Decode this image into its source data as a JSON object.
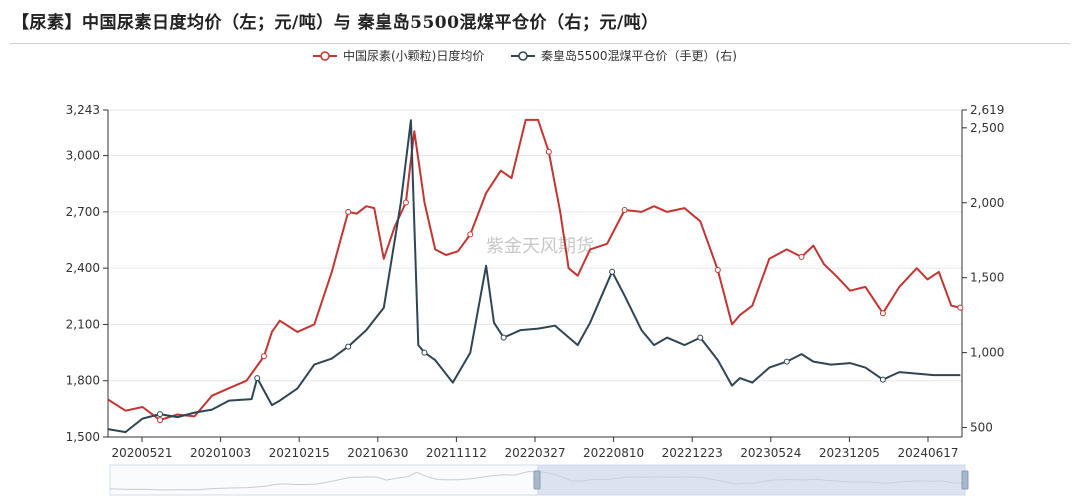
{
  "title": "【尿素】中国尿素日度均价（左；元/吨）与 秦皇岛5500混煤平仓价（右；元/吨）",
  "watermark": "紫金天风期货",
  "colors": {
    "series1": "#c23531",
    "series2": "#2f4554",
    "axis": "#333333",
    "grid": "#e6e6e6"
  },
  "chart_data": {
    "type": "line",
    "x_tick_labels": [
      "20200521",
      "20201003",
      "20210215",
      "20210630",
      "20211112",
      "20220327",
      "20220810",
      "20221223",
      "20230524",
      "20231205",
      "20240617"
    ],
    "y_left": {
      "ylim": [
        1500,
        3243
      ],
      "ticks": [
        "1,500",
        "1,800",
        "2,100",
        "2,400",
        "2,700",
        "3,000",
        "3,243"
      ]
    },
    "y_right": {
      "ylim": [
        437,
        2619
      ],
      "ticks": [
        "500",
        "1,000",
        "1,500",
        "2,000",
        "2,500",
        "2,619"
      ]
    },
    "series": [
      {
        "name": "中国尿素(小颗粒)日度均价",
        "axis": "left",
        "points": [
          [
            "2020-05-01",
            1700
          ],
          [
            "2020-06-01",
            1640
          ],
          [
            "2020-07-01",
            1660
          ],
          [
            "2020-08-01",
            1590
          ],
          [
            "2020-09-01",
            1620
          ],
          [
            "2020-10-01",
            1610
          ],
          [
            "2020-11-01",
            1720
          ],
          [
            "2020-12-01",
            1760
          ],
          [
            "2021-01-01",
            1800
          ],
          [
            "2021-02-01",
            1930
          ],
          [
            "2021-02-15",
            2060
          ],
          [
            "2021-03-01",
            2120
          ],
          [
            "2021-04-01",
            2060
          ],
          [
            "2021-05-01",
            2100
          ],
          [
            "2021-06-01",
            2380
          ],
          [
            "2021-06-30",
            2700
          ],
          [
            "2021-07-15",
            2690
          ],
          [
            "2021-08-01",
            2730
          ],
          [
            "2021-08-15",
            2720
          ],
          [
            "2021-09-01",
            2450
          ],
          [
            "2021-09-20",
            2620
          ],
          [
            "2021-10-10",
            2750
          ],
          [
            "2021-10-25",
            3130
          ],
          [
            "2021-11-12",
            2750
          ],
          [
            "2021-12-01",
            2500
          ],
          [
            "2021-12-20",
            2470
          ],
          [
            "2022-01-10",
            2490
          ],
          [
            "2022-02-01",
            2580
          ],
          [
            "2022-03-01",
            2800
          ],
          [
            "2022-03-27",
            2920
          ],
          [
            "2022-04-15",
            2880
          ],
          [
            "2022-05-10",
            3190
          ],
          [
            "2022-06-01",
            3190
          ],
          [
            "2022-06-20",
            3020
          ],
          [
            "2022-07-10",
            2700
          ],
          [
            "2022-07-25",
            2400
          ],
          [
            "2022-08-10",
            2360
          ],
          [
            "2022-09-01",
            2500
          ],
          [
            "2022-10-01",
            2530
          ],
          [
            "2022-11-01",
            2710
          ],
          [
            "2022-12-01",
            2700
          ],
          [
            "2022-12-23",
            2730
          ],
          [
            "2023-01-15",
            2700
          ],
          [
            "2023-02-15",
            2720
          ],
          [
            "2023-03-15",
            2650
          ],
          [
            "2023-04-15",
            2390
          ],
          [
            "2023-05-10",
            2100
          ],
          [
            "2023-05-24",
            2150
          ],
          [
            "2023-06-15",
            2200
          ],
          [
            "2023-07-15",
            2450
          ],
          [
            "2023-08-15",
            2500
          ],
          [
            "2023-09-10",
            2460
          ],
          [
            "2023-10-01",
            2520
          ],
          [
            "2023-10-20",
            2420
          ],
          [
            "2023-11-10",
            2360
          ],
          [
            "2023-12-05",
            2280
          ],
          [
            "2024-01-01",
            2300
          ],
          [
            "2024-02-01",
            2160
          ],
          [
            "2024-03-01",
            2300
          ],
          [
            "2024-04-01",
            2400
          ],
          [
            "2024-04-20",
            2340
          ],
          [
            "2024-05-10",
            2380
          ],
          [
            "2024-06-01",
            2200
          ],
          [
            "2024-06-17",
            2190
          ]
        ]
      },
      {
        "name": "秦皇岛5500混煤平仓价（手更）(右)",
        "axis": "right",
        "points": [
          [
            "2020-05-01",
            490
          ],
          [
            "2020-06-01",
            470
          ],
          [
            "2020-07-01",
            560
          ],
          [
            "2020-08-01",
            590
          ],
          [
            "2020-09-01",
            570
          ],
          [
            "2020-10-01",
            600
          ],
          [
            "2020-11-01",
            620
          ],
          [
            "2020-12-01",
            680
          ],
          [
            "2021-01-10",
            690
          ],
          [
            "2021-01-20",
            830
          ],
          [
            "2021-02-15",
            650
          ],
          [
            "2021-03-01",
            680
          ],
          [
            "2021-04-01",
            760
          ],
          [
            "2021-05-01",
            920
          ],
          [
            "2021-06-01",
            960
          ],
          [
            "2021-06-30",
            1040
          ],
          [
            "2021-08-01",
            1150
          ],
          [
            "2021-09-01",
            1300
          ],
          [
            "2021-10-01",
            2000
          ],
          [
            "2021-10-19",
            2550
          ],
          [
            "2021-11-01",
            1050
          ],
          [
            "2021-11-12",
            1000
          ],
          [
            "2021-12-01",
            950
          ],
          [
            "2022-01-01",
            800
          ],
          [
            "2022-02-01",
            1000
          ],
          [
            "2022-03-01",
            1580
          ],
          [
            "2022-03-15",
            1200
          ],
          [
            "2022-04-01",
            1100
          ],
          [
            "2022-05-01",
            1150
          ],
          [
            "2022-06-01",
            1160
          ],
          [
            "2022-07-01",
            1180
          ],
          [
            "2022-08-10",
            1050
          ],
          [
            "2022-09-01",
            1200
          ],
          [
            "2022-10-10",
            1540
          ],
          [
            "2022-11-01",
            1380
          ],
          [
            "2022-12-01",
            1150
          ],
          [
            "2022-12-23",
            1050
          ],
          [
            "2023-01-15",
            1100
          ],
          [
            "2023-02-15",
            1050
          ],
          [
            "2023-03-15",
            1100
          ],
          [
            "2023-04-15",
            950
          ],
          [
            "2023-05-10",
            780
          ],
          [
            "2023-05-24",
            830
          ],
          [
            "2023-06-15",
            800
          ],
          [
            "2023-07-15",
            900
          ],
          [
            "2023-08-15",
            940
          ],
          [
            "2023-09-10",
            990
          ],
          [
            "2023-10-01",
            940
          ],
          [
            "2023-11-01",
            920
          ],
          [
            "2023-12-05",
            930
          ],
          [
            "2024-01-01",
            900
          ],
          [
            "2024-02-01",
            820
          ],
          [
            "2024-03-01",
            870
          ],
          [
            "2024-04-01",
            860
          ],
          [
            "2024-05-01",
            850
          ],
          [
            "2024-06-17",
            850
          ]
        ]
      }
    ],
    "x_range": [
      "2020-05-01",
      "2024-06-20"
    ],
    "legend_position": "top-center",
    "grid": true
  }
}
